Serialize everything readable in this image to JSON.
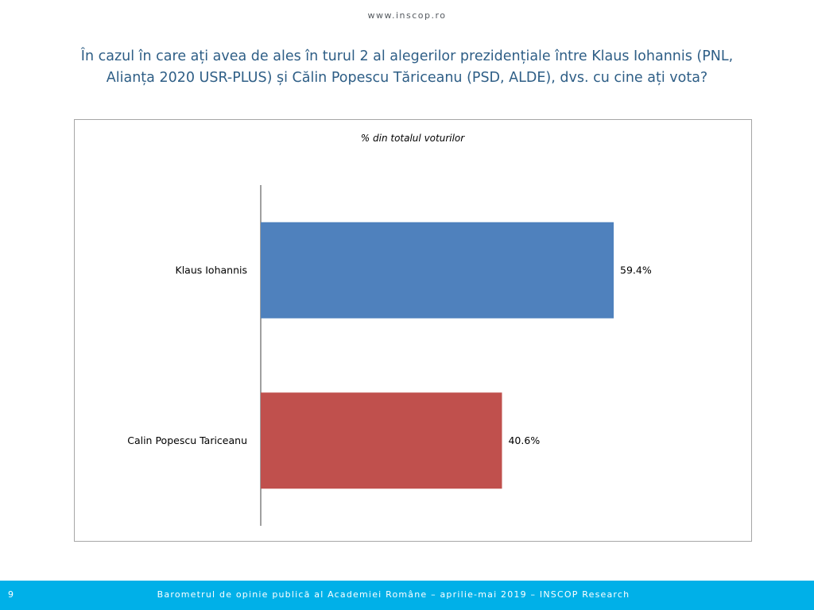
{
  "header": {
    "site_url": "www.inscop.ro",
    "question_line1": "În cazul în care ați avea de ales în turul 2 al alegerilor prezidențiale între Klaus Iohannis (PNL,",
    "question_line2": "Alianța 2020 USR-PLUS) și Călin Popescu Tăriceanu (PSD, ALDE), dvs. cu cine ați vota?"
  },
  "chart_data": {
    "type": "bar",
    "orientation": "horizontal",
    "subtitle": "% din totalul voturilor",
    "categories": [
      "Klaus Iohannis",
      "Calin Popescu Tariceanu"
    ],
    "values": [
      59.4,
      40.6
    ],
    "value_labels": [
      "59.4%",
      "40.6%"
    ],
    "colors": [
      "#4f81bd",
      "#c0504d"
    ],
    "xlim": [
      0,
      70
    ],
    "grid": false,
    "legend": "none"
  },
  "footer": {
    "page_number": "9",
    "text": "Barometrul de opinie publică al Academiei Române – aprilie-mai 2019 – INSCOP Research"
  }
}
